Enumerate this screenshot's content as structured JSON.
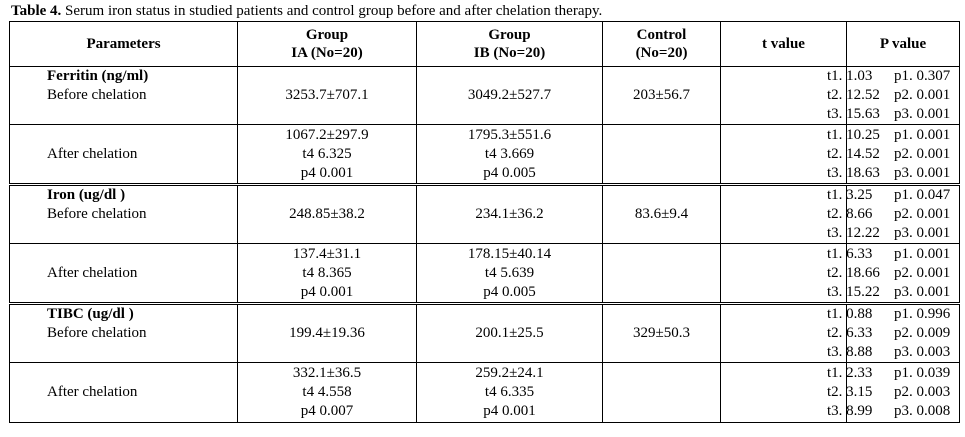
{
  "caption": {
    "label": "Table 4.",
    "text": " Serum iron status in studied patients and control group before and after chelation therapy."
  },
  "headers": {
    "parameters": "Parameters",
    "ia_1": "Group",
    "ia_2": "IA (No=20)",
    "ib_1": "Group",
    "ib_2": "IB (No=20)",
    "control_1": "Control",
    "control_2": "(No=20)",
    "t": "t value",
    "p": "P value"
  },
  "groups": [
    {
      "name": "Ferritin (ng/ml)",
      "before": {
        "label": "Before chelation",
        "ia": "3253.7±707.1",
        "ib": "3049.2±527.7",
        "control": "203±56.7",
        "t": [
          "t1. 1.03",
          "t2. 12.52",
          "t3. 15.63"
        ],
        "p": [
          "p1. 0.307",
          "p2. 0.001",
          "p3. 0.001"
        ]
      },
      "after": {
        "label": "After chelation",
        "ia": [
          "1067.2±297.9",
          "t4 6.325",
          "p4 0.001"
        ],
        "ib": [
          "1795.3±551.6",
          "t4 3.669",
          "p4 0.005"
        ],
        "t": [
          "t1. 10.25",
          "t2. 14.52",
          "t3. 18.63"
        ],
        "p": [
          "p1. 0.001",
          "p2. 0.001",
          "p3. 0.001"
        ]
      }
    },
    {
      "name": "Iron (ug/dl )",
      "before": {
        "label": "Before chelation",
        "ia": "248.85±38.2",
        "ib": "234.1±36.2",
        "control": "83.6±9.4",
        "t": [
          "t1. 3.25",
          "t2. 8.66",
          "t3. 12.22"
        ],
        "p": [
          "p1. 0.047",
          "p2. 0.001",
          "p3. 0.001"
        ]
      },
      "after": {
        "label": "After chelation",
        "ia": [
          "137.4±31.1",
          "t4 8.365",
          "p4 0.001"
        ],
        "ib": [
          "178.15±40.14",
          "t4 5.639",
          "p4 0.005"
        ],
        "t": [
          "t1. 6.33",
          "t2. 18.66",
          "t3. 15.22"
        ],
        "p": [
          "p1. 0.001",
          "p2. 0.001",
          "p3. 0.001"
        ]
      }
    },
    {
      "name": "TIBC (ug/dl )",
      "before": {
        "label": "Before chelation",
        "ia": "199.4±19.36",
        "ib": "200.1±25.5",
        "control": "329±50.3",
        "t": [
          "t1. 0.88",
          "t2. 6.33",
          "t3. 8.88"
        ],
        "p": [
          "p1. 0.996",
          "p2. 0.009",
          "p3. 0.003"
        ]
      },
      "after": {
        "label": "After chelation",
        "ia": [
          "332.1±36.5",
          "t4 4.558",
          "p4 0.007"
        ],
        "ib": [
          "259.2±24.1",
          "t4 6.335",
          "p4 0.001"
        ],
        "t": [
          "t1. 2.33",
          "t2. 3.15",
          "t3. 8.99"
        ],
        "p": [
          "p1. 0.039",
          "p2. 0.003",
          "p3. 0.008"
        ]
      }
    }
  ]
}
